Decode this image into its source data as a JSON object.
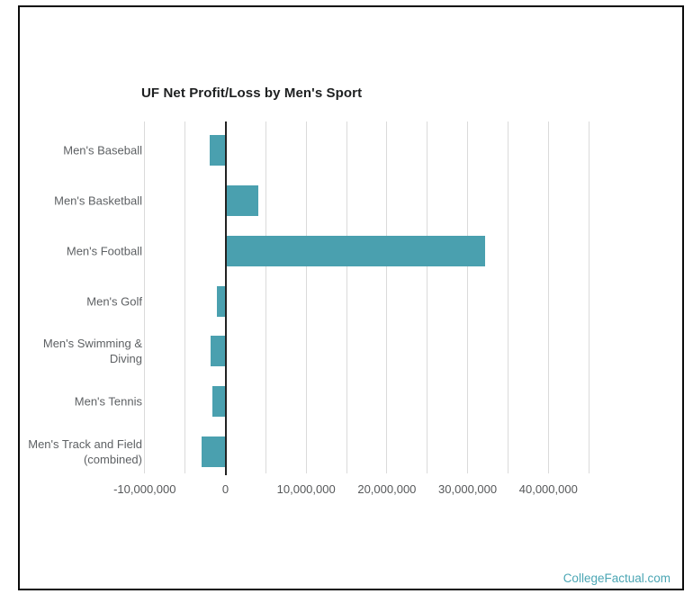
{
  "chart_data": {
    "type": "bar",
    "orientation": "horizontal",
    "title": "UF Net Profit/Loss by Men's Sport",
    "categories": [
      "Men's Baseball",
      "Men's Basketball",
      "Men's Football",
      "Men's Golf",
      "Men's Swimming & Diving",
      "Men's Tennis",
      "Men's Track and Field (combined)"
    ],
    "category_display_lines": [
      [
        "Men's Baseball"
      ],
      [
        "Men's Basketball"
      ],
      [
        "Men's Football"
      ],
      [
        "Men's Golf"
      ],
      [
        "Men's Swimming &",
        "Diving"
      ],
      [
        "Men's Tennis"
      ],
      [
        "Men's Track and Field",
        "(combined)"
      ]
    ],
    "values": [
      -1900000,
      4100000,
      32200000,
      -1050000,
      -1850000,
      -1600000,
      -3000000
    ],
    "xlabel": "",
    "ylabel": "",
    "x_range": [
      -10000000,
      45000000
    ],
    "grid": true,
    "legend": "none",
    "x_axis": {
      "tick_labels": [
        {
          "value": -10000000,
          "label": "-10,000,000"
        },
        {
          "value": 0,
          "label": "0"
        },
        {
          "value": 10000000,
          "label": "10,000,000"
        },
        {
          "value": 20000000,
          "label": "20,000,000"
        },
        {
          "value": 30000000,
          "label": "30,000,000"
        },
        {
          "value": 40000000,
          "label": "40,000,000"
        }
      ],
      "gridline_values": [
        -10000000,
        -5000000,
        0,
        5000000,
        10000000,
        15000000,
        20000000,
        25000000,
        30000000,
        35000000,
        40000000,
        45000000
      ]
    },
    "colors": {
      "bar": "#4aa0af",
      "gridline": "#dadada",
      "zero_line": "#222222",
      "title": "#1d1f20",
      "axis_labels": "#5b5e61"
    }
  },
  "footer": {
    "watermark": "CollegeFactual.com",
    "watermark_color": "#4ba6b4"
  }
}
